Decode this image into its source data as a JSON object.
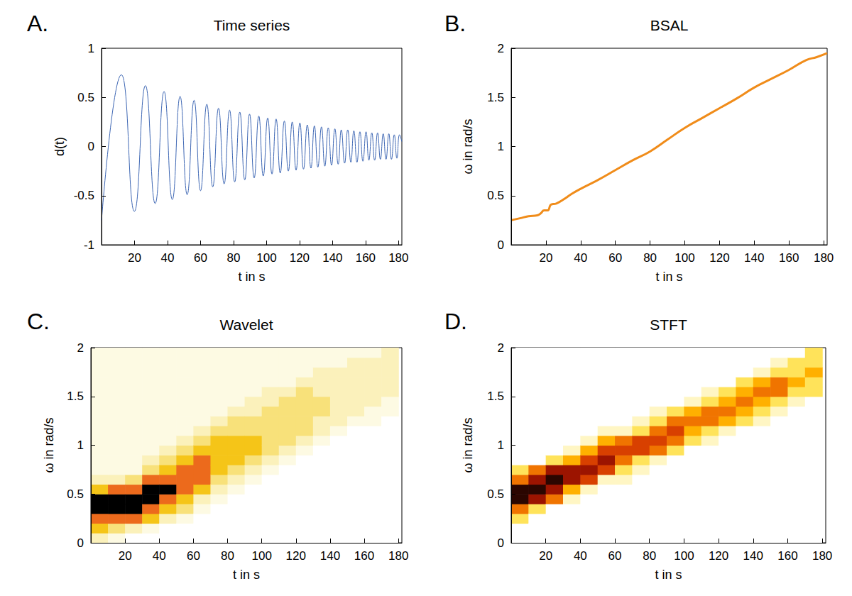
{
  "chart_data": [
    {
      "type": "line",
      "annotation": "A.",
      "title": "Time series",
      "x_label": "t in s",
      "y_label": "d(t)",
      "x": [
        0,
        12.0,
        19.9,
        26.6,
        32.5,
        37.9,
        42.9,
        47.6,
        51.9,
        56.1,
        60.0,
        63.8,
        67.4,
        70.9,
        74.3,
        77.6,
        80.7,
        83.8,
        86.8,
        89.7,
        92.5,
        95.3,
        98.0,
        100.7,
        103.3,
        105.8,
        108.3,
        110.8,
        113.2,
        115.6,
        117.9,
        120.2,
        122.4,
        124.7,
        126.9,
        129.0,
        131.1,
        133.3,
        135.3,
        137.4,
        139.4,
        141.4,
        143.4,
        145.3,
        147.3,
        149.2,
        151.1,
        152.9,
        154.8,
        156.6,
        158.4,
        160.3,
        162.0,
        163.8,
        165.5,
        167.3,
        169.0,
        170.7,
        172.4,
        174.1,
        175.7,
        177.4,
        179.0,
        180.6,
        182
      ],
      "values": [
        -0.75,
        0.73,
        -0.66,
        0.62,
        -0.58,
        0.56,
        -0.54,
        0.51,
        -0.49,
        0.47,
        -0.45,
        0.43,
        -0.41,
        0.39,
        -0.38,
        0.37,
        -0.36,
        0.35,
        -0.34,
        0.33,
        -0.32,
        0.31,
        -0.3,
        0.29,
        -0.28,
        0.28,
        -0.27,
        0.26,
        -0.25,
        0.25,
        -0.24,
        0.24,
        -0.23,
        0.22,
        -0.22,
        0.21,
        -0.21,
        0.2,
        -0.2,
        0.19,
        -0.19,
        0.18,
        -0.18,
        0.17,
        -0.17,
        0.17,
        -0.16,
        0.16,
        -0.16,
        0.15,
        -0.15,
        0.15,
        -0.14,
        0.14,
        -0.14,
        0.14,
        -0.13,
        0.13,
        -0.13,
        0.13,
        -0.13,
        0.12,
        -0.12,
        0.12,
        0.05
      ],
      "color": "#3d66b3",
      "xlim": [
        0,
        182
      ],
      "xticks": [
        20,
        40,
        60,
        80,
        100,
        120,
        140,
        160,
        180
      ],
      "ylim": [
        -1,
        1
      ],
      "yticks": [
        -1,
        -0.5,
        0,
        0.5,
        1
      ],
      "grid": false
    },
    {
      "type": "line",
      "annotation": "B.",
      "title": "BSAL",
      "x_label": "t in s",
      "y_label": "ω in rad/s",
      "x": [
        0,
        5,
        10,
        15,
        17,
        19,
        21,
        23,
        26,
        30,
        35,
        40,
        50,
        60,
        70,
        80,
        90,
        100,
        110,
        120,
        130,
        140,
        150,
        160,
        170,
        176,
        182
      ],
      "values": [
        0.25,
        0.27,
        0.29,
        0.3,
        0.32,
        0.35,
        0.35,
        0.41,
        0.42,
        0.46,
        0.52,
        0.57,
        0.66,
        0.76,
        0.86,
        0.95,
        1.07,
        1.19,
        1.29,
        1.39,
        1.49,
        1.6,
        1.69,
        1.78,
        1.88,
        1.91,
        1.95
      ],
      "color": "#f08c1a",
      "xlim": [
        0,
        182
      ],
      "xticks": [
        20,
        40,
        60,
        80,
        100,
        120,
        140,
        160,
        180
      ],
      "ylim": [
        0,
        2
      ],
      "yticks": [
        0,
        0.5,
        1,
        1.5,
        2
      ],
      "grid": false
    },
    {
      "type": "heatmap",
      "annotation": "C.",
      "title": "Wavelet",
      "x_label": "t in s",
      "y_label": "ω in rad/s",
      "x": [
        5,
        15,
        25,
        35,
        45,
        55,
        65,
        75,
        85,
        95,
        105,
        115,
        125,
        135,
        145,
        155,
        165,
        175
      ],
      "y": [
        0.05,
        0.15,
        0.25,
        0.35,
        0.45,
        0.55,
        0.65,
        0.75,
        0.85,
        0.95,
        1.05,
        1.15,
        1.25,
        1.35,
        1.45,
        1.55,
        1.65,
        1.75,
        1.85,
        1.95
      ],
      "cells": [
        [
          2,
          4,
          5,
          6,
          6,
          4,
          2,
          1,
          1,
          1,
          1,
          1,
          1,
          1,
          1,
          1,
          1,
          1,
          1,
          1
        ],
        [
          1,
          3,
          5,
          6,
          6,
          5,
          2,
          1,
          1,
          1,
          1,
          1,
          1,
          1,
          1,
          1,
          1,
          1,
          1,
          1
        ],
        [
          0,
          2,
          5,
          6,
          6,
          5,
          3,
          1,
          1,
          1,
          1,
          1,
          1,
          1,
          1,
          1,
          1,
          1,
          1,
          1
        ],
        [
          0,
          1,
          4,
          5,
          6,
          6,
          5,
          3,
          2,
          1,
          1,
          1,
          1,
          1,
          1,
          1,
          1,
          1,
          1,
          1
        ],
        [
          0,
          0,
          2,
          4,
          5,
          6,
          5,
          4,
          3,
          2,
          1,
          1,
          1,
          1,
          1,
          1,
          1,
          1,
          1,
          1
        ],
        [
          0,
          0,
          1,
          3,
          4,
          5,
          5,
          5,
          4,
          3,
          2,
          1,
          1,
          1,
          1,
          1,
          1,
          1,
          1,
          1
        ],
        [
          0,
          0,
          0,
          1,
          2,
          4,
          5,
          5,
          5,
          4,
          3,
          2,
          1,
          1,
          1,
          1,
          1,
          1,
          1,
          1
        ],
        [
          0,
          0,
          0,
          0,
          1,
          2,
          3,
          4,
          4,
          4,
          4,
          3,
          2,
          1,
          1,
          1,
          1,
          1,
          1,
          1
        ],
        [
          0,
          0,
          0,
          0,
          0,
          1,
          2,
          3,
          4,
          4,
          4,
          3,
          3,
          2,
          1,
          1,
          1,
          1,
          1,
          1
        ],
        [
          0,
          0,
          0,
          0,
          0,
          0,
          1,
          2,
          3,
          4,
          4,
          3,
          3,
          2,
          2,
          1,
          1,
          1,
          1,
          1
        ],
        [
          0,
          0,
          0,
          0,
          0,
          0,
          0,
          1,
          2,
          3,
          3,
          3,
          3,
          3,
          2,
          2,
          1,
          1,
          1,
          1
        ],
        [
          0,
          0,
          0,
          0,
          0,
          0,
          0,
          0,
          1,
          2,
          3,
          3,
          3,
          3,
          3,
          2,
          1,
          1,
          1,
          1
        ],
        [
          0,
          0,
          0,
          0,
          0,
          0,
          0,
          0,
          0,
          1,
          2,
          3,
          3,
          3,
          3,
          3,
          2,
          1,
          1,
          1
        ],
        [
          0,
          0,
          0,
          0,
          0,
          0,
          0,
          0,
          0,
          0,
          1,
          2,
          2,
          3,
          3,
          2,
          2,
          2,
          1,
          1
        ],
        [
          0,
          0,
          0,
          0,
          0,
          0,
          0,
          0,
          0,
          0,
          0,
          1,
          2,
          2,
          2,
          2,
          2,
          2,
          1,
          1
        ],
        [
          0,
          0,
          0,
          0,
          0,
          0,
          0,
          0,
          0,
          0,
          0,
          0,
          1,
          2,
          2,
          2,
          2,
          2,
          2,
          1
        ],
        [
          0,
          0,
          0,
          0,
          0,
          0,
          0,
          0,
          0,
          0,
          0,
          0,
          1,
          1,
          2,
          2,
          2,
          2,
          2,
          1
        ],
        [
          0,
          0,
          0,
          0,
          0,
          0,
          0,
          0,
          0,
          0,
          0,
          0,
          0,
          1,
          1,
          2,
          2,
          2,
          2,
          2
        ]
      ],
      "colors": [
        "#ffffff",
        "#fdfae3",
        "#fbf1bb",
        "#f8e17a",
        "#f5c518",
        "#ec6a1c",
        "#000000"
      ],
      "xlim": [
        0,
        182
      ],
      "xticks": [
        20,
        40,
        60,
        80,
        100,
        120,
        140,
        160,
        180
      ],
      "ylim": [
        0,
        2
      ],
      "yticks": [
        0,
        0.5,
        1,
        1.5,
        2
      ],
      "grid": false
    },
    {
      "type": "heatmap",
      "annotation": "D.",
      "title": "STFT",
      "x_label": "t in s",
      "y_label": "ω in rad/s",
      "x": [
        5,
        15,
        25,
        35,
        45,
        55,
        65,
        75,
        85,
        95,
        105,
        115,
        125,
        135,
        145,
        155,
        165,
        175
      ],
      "y": [
        0.05,
        0.15,
        0.25,
        0.35,
        0.45,
        0.55,
        0.65,
        0.75,
        0.85,
        0.95,
        1.05,
        1.15,
        1.25,
        1.35,
        1.45,
        1.55,
        1.65,
        1.75,
        1.85,
        1.95
      ],
      "cells": [
        [
          0,
          0,
          2,
          4,
          7,
          7,
          4,
          2,
          0,
          0,
          0,
          0,
          0,
          0,
          0,
          0,
          0,
          0,
          0,
          0
        ],
        [
          0,
          0,
          0,
          2,
          6,
          7,
          6,
          4,
          0,
          0,
          0,
          0,
          0,
          0,
          0,
          0,
          0,
          0,
          0,
          0
        ],
        [
          0,
          0,
          0,
          0,
          4,
          6,
          7,
          6,
          2,
          0,
          0,
          0,
          0,
          0,
          0,
          0,
          0,
          0,
          0,
          0
        ],
        [
          0,
          0,
          0,
          0,
          1,
          3,
          6,
          6,
          3,
          1,
          0,
          0,
          0,
          0,
          0,
          0,
          0,
          0,
          0,
          0
        ],
        [
          0,
          0,
          0,
          0,
          0,
          1,
          5,
          6,
          5,
          3,
          1,
          0,
          0,
          0,
          0,
          0,
          0,
          0,
          0,
          0
        ],
        [
          0,
          0,
          0,
          0,
          0,
          0,
          1,
          5,
          6,
          5,
          3,
          1,
          0,
          0,
          0,
          0,
          0,
          0,
          0,
          0
        ],
        [
          0,
          0,
          0,
          0,
          0,
          0,
          1,
          2,
          4,
          5,
          4,
          1,
          0,
          0,
          0,
          0,
          0,
          0,
          0,
          0
        ],
        [
          0,
          0,
          0,
          0,
          0,
          0,
          0,
          1,
          2,
          5,
          5,
          2,
          1,
          0,
          0,
          0,
          0,
          0,
          0,
          0
        ],
        [
          0,
          0,
          0,
          0,
          0,
          0,
          0,
          0,
          1,
          4,
          5,
          4,
          2,
          1,
          0,
          0,
          0,
          0,
          0,
          0
        ],
        [
          0,
          0,
          0,
          0,
          0,
          0,
          0,
          0,
          0,
          2,
          4,
          5,
          4,
          2,
          0,
          0,
          0,
          0,
          0,
          0
        ],
        [
          0,
          0,
          0,
          0,
          0,
          0,
          0,
          0,
          0,
          0,
          2,
          3,
          4,
          3,
          1,
          0,
          0,
          0,
          0,
          0
        ],
        [
          0,
          0,
          0,
          0,
          0,
          0,
          0,
          0,
          0,
          0,
          1,
          2,
          4,
          4,
          2,
          1,
          0,
          0,
          0,
          0
        ],
        [
          0,
          0,
          0,
          0,
          0,
          0,
          0,
          0,
          0,
          0,
          0,
          1,
          3,
          4,
          3,
          2,
          0,
          0,
          0,
          0
        ],
        [
          0,
          0,
          0,
          0,
          0,
          0,
          0,
          0,
          0,
          0,
          0,
          0,
          2,
          3,
          4,
          3,
          2,
          0,
          0,
          0
        ],
        [
          0,
          0,
          0,
          0,
          0,
          0,
          0,
          0,
          0,
          0,
          0,
          0,
          1,
          2,
          3,
          4,
          3,
          1,
          0,
          0
        ],
        [
          0,
          0,
          0,
          0,
          0,
          0,
          0,
          0,
          0,
          0,
          0,
          0,
          0,
          1,
          2,
          4,
          4,
          2,
          1,
          0
        ],
        [
          0,
          0,
          0,
          0,
          0,
          0,
          0,
          0,
          0,
          0,
          0,
          0,
          0,
          0,
          1,
          2,
          3,
          2,
          2,
          0
        ],
        [
          0,
          0,
          0,
          0,
          0,
          0,
          0,
          0,
          0,
          0,
          0,
          0,
          0,
          0,
          0,
          2,
          2,
          3,
          2,
          2
        ]
      ],
      "colors": [
        "#ffffff",
        "#fff6c4",
        "#ffe35a",
        "#ffb000",
        "#f07400",
        "#d84000",
        "#9c1400",
        "#2b0600"
      ],
      "xlim": [
        0,
        182
      ],
      "xticks": [
        20,
        40,
        60,
        80,
        100,
        120,
        140,
        160,
        180
      ],
      "ylim": [
        0,
        2
      ],
      "yticks": [
        0,
        0.5,
        1,
        1.5,
        2
      ],
      "grid": false
    }
  ]
}
